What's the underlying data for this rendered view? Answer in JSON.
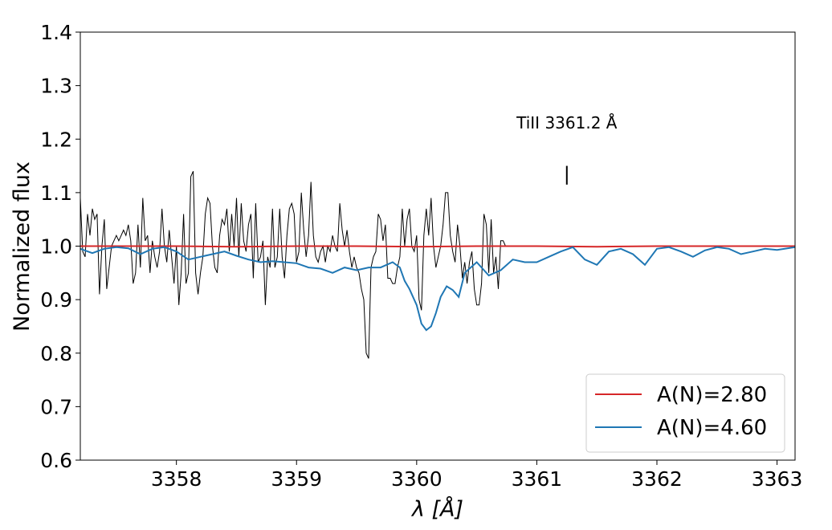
{
  "chart_data": {
    "type": "line",
    "title": "",
    "xlabel": "λ [Å]",
    "ylabel": "Normalized flux",
    "xlim": [
      3357.2,
      3363.15
    ],
    "ylim": [
      0.6,
      1.4
    ],
    "xticks": [
      3358,
      3359,
      3360,
      3361,
      3362,
      3363
    ],
    "xtick_labels": [
      "3358",
      "3359",
      "3360",
      "3361",
      "3362",
      "3363"
    ],
    "yticks": [
      0.6,
      0.7,
      0.8,
      0.9,
      1.0,
      1.1,
      1.2,
      1.3,
      1.4
    ],
    "ytick_labels": [
      "0.6",
      "0.7",
      "0.8",
      "0.9",
      "1.0",
      "1.1",
      "1.2",
      "1.3",
      "1.4"
    ],
    "grid": false,
    "legend_position": "lower-right",
    "annotation": {
      "text": "TiII 3361.2 Å",
      "x": 3361.25,
      "marker_y": [
        1.115,
        1.15
      ],
      "text_y": 1.22
    },
    "observed": {
      "color": "#000000",
      "x_start": 3357.2,
      "x_step": 0.02,
      "values": [
        1.09,
        0.99,
        0.98,
        1.06,
        1.02,
        1.07,
        1.05,
        1.06,
        0.91,
        1.0,
        1.05,
        0.92,
        0.96,
        1.0,
        1.01,
        1.02,
        1.01,
        1.02,
        1.03,
        1.02,
        1.04,
        1.01,
        0.93,
        0.95,
        1.04,
        0.96,
        1.09,
        1.01,
        1.02,
        0.95,
        1.01,
        0.98,
        0.96,
        0.99,
        1.07,
        1.0,
        0.97,
        1.03,
        0.98,
        0.93,
        1.0,
        0.89,
        0.95,
        1.06,
        0.93,
        0.95,
        1.13,
        1.14,
        0.95,
        0.91,
        0.95,
        0.98,
        1.06,
        1.09,
        1.08,
        1.0,
        0.96,
        0.95,
        1.02,
        1.05,
        1.04,
        1.07,
        0.99,
        1.06,
        1.0,
        1.09,
        0.98,
        1.08,
        1.01,
        0.99,
        1.04,
        1.06,
        0.94,
        1.08,
        0.97,
        0.98,
        1.01,
        0.89,
        0.98,
        0.96,
        1.07,
        0.96,
        0.98,
        1.07,
        0.98,
        0.94,
        1.02,
        1.07,
        1.08,
        1.06,
        0.97,
        0.99,
        1.1,
        1.03,
        0.98,
        1.02,
        1.12,
        1.02,
        0.98,
        0.97,
        0.99,
        1.0,
        0.97,
        1.0,
        0.99,
        1.02,
        1.0,
        0.99,
        1.08,
        1.03,
        1.0,
        1.03,
        0.99,
        0.96,
        0.98,
        0.96,
        0.95,
        0.92,
        0.9,
        0.8,
        0.79,
        0.96,
        0.98,
        0.99,
        1.06,
        1.05,
        1.01,
        1.04,
        0.94,
        0.94,
        0.93,
        0.93,
        0.96,
        0.98,
        1.07,
        1.0,
        1.05,
        1.07,
        1.0,
        0.99,
        1.02,
        0.9,
        0.88,
        1.02,
        1.07,
        1.02,
        1.09,
        1.0,
        0.96,
        0.98,
        1.0,
        1.04,
        1.1,
        1.1,
        1.02,
        0.99,
        0.97,
        1.04,
        1.0,
        0.94,
        0.97,
        0.93,
        0.97,
        0.99,
        0.92,
        0.89,
        0.89,
        0.93,
        1.06,
        1.04,
        0.95,
        1.05,
        0.95,
        0.98,
        0.92,
        1.01,
        1.01,
        1.0
      ]
    },
    "series": [
      {
        "name": "A(N)=2.80",
        "color": "#d62728",
        "x": [
          3357.2,
          3357.6,
          3358.0,
          3358.5,
          3359.0,
          3359.5,
          3360.0,
          3360.5,
          3361.0,
          3361.5,
          3362.0,
          3362.5,
          3363.15
        ],
        "values": [
          1.0,
          1.0,
          1.0,
          0.999,
          1.0,
          1.0,
          0.999,
          1.0,
          1.0,
          0.999,
          1.0,
          1.0,
          1.0
        ]
      },
      {
        "name": "A(N)=4.60",
        "color": "#1f77b4",
        "x": [
          3357.2,
          3357.3,
          3357.4,
          3357.5,
          3357.6,
          3357.7,
          3357.8,
          3357.9,
          3358.0,
          3358.1,
          3358.2,
          3358.3,
          3358.4,
          3358.5,
          3358.6,
          3358.7,
          3358.8,
          3358.9,
          3359.0,
          3359.1,
          3359.2,
          3359.3,
          3359.4,
          3359.5,
          3359.6,
          3359.7,
          3359.8,
          3359.86,
          3359.9,
          3359.94,
          3360.0,
          3360.04,
          3360.08,
          3360.12,
          3360.16,
          3360.2,
          3360.25,
          3360.3,
          3360.35,
          3360.4,
          3360.5,
          3360.6,
          3360.7,
          3360.8,
          3360.9,
          3361.0,
          3361.1,
          3361.2,
          3361.3,
          3361.4,
          3361.5,
          3361.6,
          3361.7,
          3361.8,
          3361.9,
          3362.0,
          3362.1,
          3362.2,
          3362.3,
          3362.4,
          3362.5,
          3362.6,
          3362.7,
          3362.8,
          3362.9,
          3363.0,
          3363.15
        ],
        "values": [
          0.995,
          0.987,
          0.995,
          0.998,
          0.996,
          0.985,
          0.995,
          0.998,
          0.99,
          0.975,
          0.98,
          0.985,
          0.99,
          0.982,
          0.975,
          0.97,
          0.972,
          0.97,
          0.968,
          0.96,
          0.958,
          0.95,
          0.96,
          0.955,
          0.96,
          0.96,
          0.97,
          0.96,
          0.935,
          0.92,
          0.89,
          0.855,
          0.843,
          0.85,
          0.875,
          0.905,
          0.925,
          0.918,
          0.905,
          0.95,
          0.97,
          0.945,
          0.955,
          0.975,
          0.97,
          0.97,
          0.98,
          0.99,
          0.998,
          0.975,
          0.965,
          0.99,
          0.995,
          0.985,
          0.965,
          0.995,
          0.998,
          0.99,
          0.98,
          0.992,
          0.998,
          0.995,
          0.985,
          0.99,
          0.995,
          0.993,
          0.998
        ]
      }
    ]
  }
}
